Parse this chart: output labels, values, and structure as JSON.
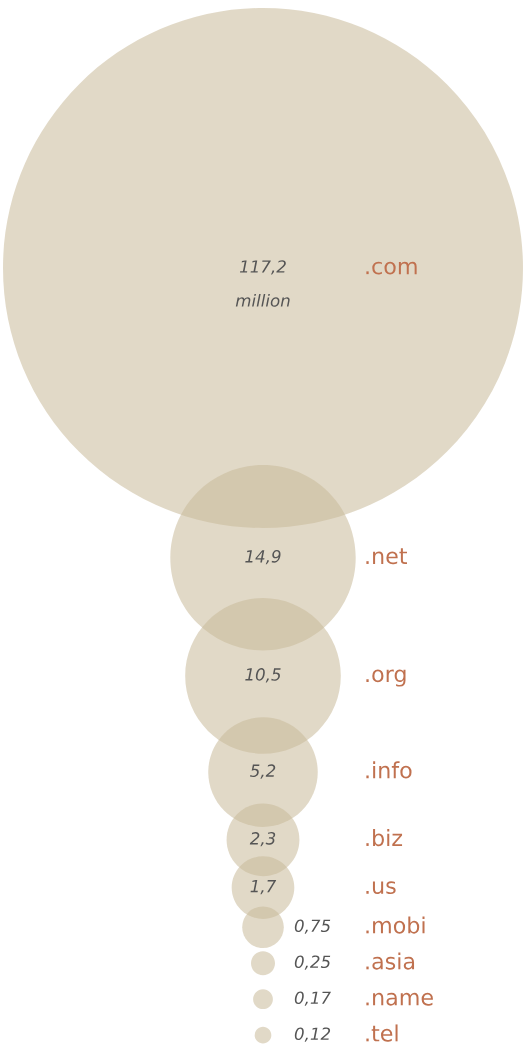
{
  "chart_data": {
    "type": "other",
    "categories": [
      ".com",
      ".net",
      ".org",
      ".info",
      ".biz",
      ".us",
      ".mobi",
      ".asia",
      ".name",
      ".tel"
    ],
    "values": [
      117.2,
      14.9,
      10.5,
      5.2,
      2.3,
      1.7,
      0.75,
      0.25,
      0.17,
      0.12
    ],
    "value_labels": [
      "117,2",
      "14,9",
      "10,5",
      "5,2",
      "2,3",
      "1,7",
      "0,75",
      "0,25",
      "0,17",
      "0,12"
    ],
    "annotations": [
      "million"
    ],
    "color": "#e1d9c7"
  }
}
